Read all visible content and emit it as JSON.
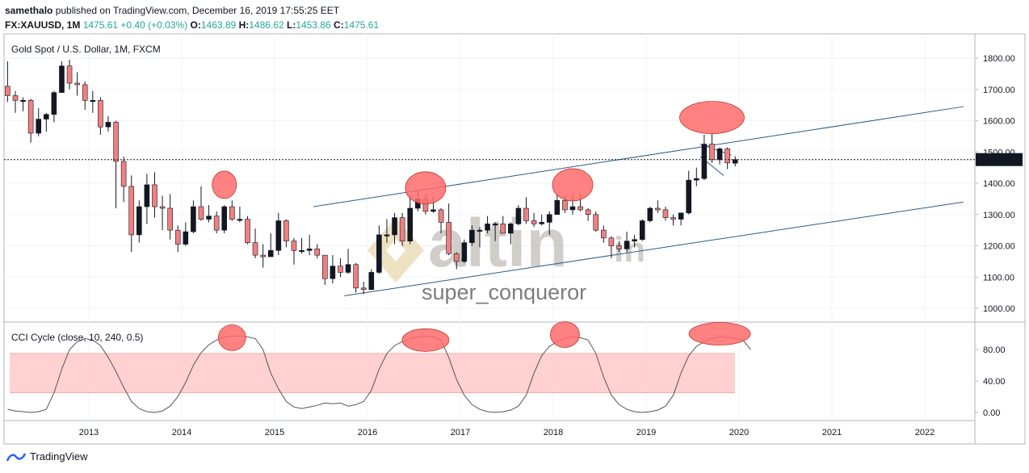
{
  "header": {
    "publisher_name": "samethalo",
    "publisher_rest": "published on TradingView.com, December 16, 2019 17:55:25 EET",
    "symbol": "FX:XAUUSD, 1M",
    "price": "1475.61",
    "change": "+0.40 (+0.03%)",
    "o_label": "O:",
    "o_value": "1463.89",
    "h_label": "H:",
    "h_value": "1486.62",
    "l_label": "L:",
    "l_value": "1453.86",
    "c_label": "C:",
    "c_value": "1475.61"
  },
  "main_pane": {
    "title": "Gold Spot / U.S. Dollar, 1M, FXCM"
  },
  "indicator_pane": {
    "title": "CCI Cycle (close, 10, 240, 0.5)"
  },
  "watermark": {
    "brand": "altin",
    "suffix": "in",
    "author": "super_conqueror"
  },
  "footer": {
    "logo_text": "TradingView"
  },
  "colors": {
    "up": "#26a69a",
    "down": "#ef5350",
    "candle_up_body": "#131722",
    "candle_down_body": "#f08080",
    "trendline": "#2c5b8a",
    "highlight": "#ff6b6b",
    "band": "#ffc9c9"
  },
  "chart_data": [
    {
      "type": "candlestick",
      "timeframe": "1M",
      "x_ticks": [
        "2013",
        "2014",
        "2015",
        "2016",
        "2017",
        "2018",
        "2019",
        "2020",
        "2021",
        "2022"
      ],
      "y_ticks": [
        "1000.00",
        "1100.00",
        "1200.00",
        "1300.00",
        "1400.00",
        "1500.00",
        "1600.00",
        "1700.00",
        "1800.00"
      ],
      "ylim": [
        980,
        1850
      ],
      "last_price": "1475.61",
      "candles": [
        {
          "t": "2012-02",
          "o": 1710,
          "h": 1790,
          "l": 1660,
          "c": 1680
        },
        {
          "t": "2012-03",
          "o": 1680,
          "h": 1695,
          "l": 1625,
          "c": 1665
        },
        {
          "t": "2012-04",
          "o": 1665,
          "h": 1675,
          "l": 1630,
          "c": 1665
        },
        {
          "t": "2012-05",
          "o": 1665,
          "h": 1670,
          "l": 1530,
          "c": 1560
        },
        {
          "t": "2012-06",
          "o": 1560,
          "h": 1640,
          "l": 1550,
          "c": 1605
        },
        {
          "t": "2012-07",
          "o": 1605,
          "h": 1625,
          "l": 1565,
          "c": 1620
        },
        {
          "t": "2012-08",
          "o": 1620,
          "h": 1695,
          "l": 1595,
          "c": 1690
        },
        {
          "t": "2012-09",
          "o": 1690,
          "h": 1790,
          "l": 1690,
          "c": 1775
        },
        {
          "t": "2012-10",
          "o": 1775,
          "h": 1795,
          "l": 1700,
          "c": 1720
        },
        {
          "t": "2012-11",
          "o": 1720,
          "h": 1755,
          "l": 1680,
          "c": 1715
        },
        {
          "t": "2012-12",
          "o": 1715,
          "h": 1725,
          "l": 1635,
          "c": 1665
        },
        {
          "t": "2013-01",
          "o": 1665,
          "h": 1695,
          "l": 1625,
          "c": 1665
        },
        {
          "t": "2013-02",
          "o": 1665,
          "h": 1675,
          "l": 1555,
          "c": 1580
        },
        {
          "t": "2013-03",
          "o": 1580,
          "h": 1615,
          "l": 1565,
          "c": 1595
        },
        {
          "t": "2013-04",
          "o": 1595,
          "h": 1600,
          "l": 1320,
          "c": 1470
        },
        {
          "t": "2013-05",
          "o": 1470,
          "h": 1485,
          "l": 1340,
          "c": 1390
        },
        {
          "t": "2013-06",
          "o": 1390,
          "h": 1425,
          "l": 1180,
          "c": 1235
        },
        {
          "t": "2013-07",
          "o": 1235,
          "h": 1345,
          "l": 1210,
          "c": 1325
        },
        {
          "t": "2013-08",
          "o": 1325,
          "h": 1430,
          "l": 1270,
          "c": 1395
        },
        {
          "t": "2013-09",
          "o": 1395,
          "h": 1435,
          "l": 1290,
          "c": 1325
        },
        {
          "t": "2013-10",
          "o": 1325,
          "h": 1360,
          "l": 1250,
          "c": 1320
        },
        {
          "t": "2013-11",
          "o": 1320,
          "h": 1365,
          "l": 1220,
          "c": 1250
        },
        {
          "t": "2013-12",
          "o": 1250,
          "h": 1265,
          "l": 1180,
          "c": 1205
        },
        {
          "t": "2014-01",
          "o": 1205,
          "h": 1275,
          "l": 1200,
          "c": 1245
        },
        {
          "t": "2014-02",
          "o": 1245,
          "h": 1345,
          "l": 1240,
          "c": 1325
        },
        {
          "t": "2014-03",
          "o": 1325,
          "h": 1390,
          "l": 1280,
          "c": 1285
        },
        {
          "t": "2014-04",
          "o": 1285,
          "h": 1330,
          "l": 1275,
          "c": 1295
        },
        {
          "t": "2014-05",
          "o": 1295,
          "h": 1310,
          "l": 1240,
          "c": 1250
        },
        {
          "t": "2014-06",
          "o": 1250,
          "h": 1330,
          "l": 1240,
          "c": 1325
        },
        {
          "t": "2014-07",
          "o": 1325,
          "h": 1345,
          "l": 1280,
          "c": 1285
        },
        {
          "t": "2014-08",
          "o": 1285,
          "h": 1325,
          "l": 1275,
          "c": 1285
        },
        {
          "t": "2014-09",
          "o": 1285,
          "h": 1295,
          "l": 1205,
          "c": 1210
        },
        {
          "t": "2014-10",
          "o": 1210,
          "h": 1255,
          "l": 1160,
          "c": 1170
        },
        {
          "t": "2014-11",
          "o": 1170,
          "h": 1205,
          "l": 1130,
          "c": 1165
        },
        {
          "t": "2014-12",
          "o": 1165,
          "h": 1240,
          "l": 1165,
          "c": 1185
        },
        {
          "t": "2015-01",
          "o": 1185,
          "h": 1305,
          "l": 1170,
          "c": 1280
        },
        {
          "t": "2015-02",
          "o": 1280,
          "h": 1285,
          "l": 1195,
          "c": 1215
        },
        {
          "t": "2015-03",
          "o": 1215,
          "h": 1225,
          "l": 1140,
          "c": 1185
        },
        {
          "t": "2015-04",
          "o": 1185,
          "h": 1225,
          "l": 1175,
          "c": 1185
        },
        {
          "t": "2015-05",
          "o": 1185,
          "h": 1235,
          "l": 1170,
          "c": 1190
        },
        {
          "t": "2015-06",
          "o": 1190,
          "h": 1205,
          "l": 1160,
          "c": 1170
        },
        {
          "t": "2015-07",
          "o": 1170,
          "h": 1170,
          "l": 1075,
          "c": 1095
        },
        {
          "t": "2015-08",
          "o": 1095,
          "h": 1170,
          "l": 1080,
          "c": 1135
        },
        {
          "t": "2015-09",
          "o": 1135,
          "h": 1160,
          "l": 1100,
          "c": 1115
        },
        {
          "t": "2015-10",
          "o": 1115,
          "h": 1190,
          "l": 1110,
          "c": 1140
        },
        {
          "t": "2015-11",
          "o": 1140,
          "h": 1145,
          "l": 1050,
          "c": 1065
        },
        {
          "t": "2015-12",
          "o": 1065,
          "h": 1085,
          "l": 1045,
          "c": 1060
        },
        {
          "t": "2016-01",
          "o": 1060,
          "h": 1125,
          "l": 1060,
          "c": 1115
        },
        {
          "t": "2016-02",
          "o": 1115,
          "h": 1265,
          "l": 1110,
          "c": 1235
        },
        {
          "t": "2016-03",
          "o": 1235,
          "h": 1285,
          "l": 1210,
          "c": 1235
        },
        {
          "t": "2016-04",
          "o": 1235,
          "h": 1305,
          "l": 1205,
          "c": 1290
        },
        {
          "t": "2016-05",
          "o": 1290,
          "h": 1305,
          "l": 1200,
          "c": 1215
        },
        {
          "t": "2016-06",
          "o": 1215,
          "h": 1360,
          "l": 1205,
          "c": 1320
        },
        {
          "t": "2016-07",
          "o": 1320,
          "h": 1375,
          "l": 1310,
          "c": 1350
        },
        {
          "t": "2016-08",
          "o": 1350,
          "h": 1365,
          "l": 1300,
          "c": 1310
        },
        {
          "t": "2016-09",
          "o": 1310,
          "h": 1355,
          "l": 1305,
          "c": 1315
        },
        {
          "t": "2016-10",
          "o": 1315,
          "h": 1320,
          "l": 1240,
          "c": 1275
        },
        {
          "t": "2016-11",
          "o": 1275,
          "h": 1335,
          "l": 1170,
          "c": 1175
        },
        {
          "t": "2016-12",
          "o": 1175,
          "h": 1180,
          "l": 1125,
          "c": 1150
        },
        {
          "t": "2017-01",
          "o": 1150,
          "h": 1220,
          "l": 1145,
          "c": 1210
        },
        {
          "t": "2017-02",
          "o": 1210,
          "h": 1265,
          "l": 1200,
          "c": 1250
        },
        {
          "t": "2017-03",
          "o": 1250,
          "h": 1260,
          "l": 1195,
          "c": 1250
        },
        {
          "t": "2017-04",
          "o": 1250,
          "h": 1295,
          "l": 1240,
          "c": 1270
        },
        {
          "t": "2017-05",
          "o": 1270,
          "h": 1275,
          "l": 1215,
          "c": 1270
        },
        {
          "t": "2017-06",
          "o": 1270,
          "h": 1295,
          "l": 1240,
          "c": 1240
        },
        {
          "t": "2017-07",
          "o": 1240,
          "h": 1275,
          "l": 1205,
          "c": 1270
        },
        {
          "t": "2017-08",
          "o": 1270,
          "h": 1330,
          "l": 1265,
          "c": 1320
        },
        {
          "t": "2017-09",
          "o": 1320,
          "h": 1355,
          "l": 1270,
          "c": 1280
        },
        {
          "t": "2017-10",
          "o": 1280,
          "h": 1305,
          "l": 1260,
          "c": 1270
        },
        {
          "t": "2017-11",
          "o": 1270,
          "h": 1300,
          "l": 1265,
          "c": 1275
        },
        {
          "t": "2017-12",
          "o": 1275,
          "h": 1310,
          "l": 1235,
          "c": 1300
        },
        {
          "t": "2018-01",
          "o": 1300,
          "h": 1365,
          "l": 1300,
          "c": 1345
        },
        {
          "t": "2018-02",
          "o": 1345,
          "h": 1360,
          "l": 1305,
          "c": 1315
        },
        {
          "t": "2018-03",
          "o": 1315,
          "h": 1365,
          "l": 1300,
          "c": 1325
        },
        {
          "t": "2018-04",
          "o": 1325,
          "h": 1365,
          "l": 1310,
          "c": 1315
        },
        {
          "t": "2018-05",
          "o": 1315,
          "h": 1320,
          "l": 1280,
          "c": 1300
        },
        {
          "t": "2018-06",
          "o": 1300,
          "h": 1310,
          "l": 1245,
          "c": 1250
        },
        {
          "t": "2018-07",
          "o": 1250,
          "h": 1265,
          "l": 1210,
          "c": 1225
        },
        {
          "t": "2018-08",
          "o": 1225,
          "h": 1230,
          "l": 1160,
          "c": 1200
        },
        {
          "t": "2018-09",
          "o": 1200,
          "h": 1215,
          "l": 1180,
          "c": 1190
        },
        {
          "t": "2018-10",
          "o": 1190,
          "h": 1245,
          "l": 1180,
          "c": 1215
        },
        {
          "t": "2018-11",
          "o": 1215,
          "h": 1235,
          "l": 1195,
          "c": 1220
        },
        {
          "t": "2018-12",
          "o": 1220,
          "h": 1285,
          "l": 1215,
          "c": 1280
        },
        {
          "t": "2019-01",
          "o": 1280,
          "h": 1325,
          "l": 1275,
          "c": 1320
        },
        {
          "t": "2019-02",
          "o": 1320,
          "h": 1345,
          "l": 1305,
          "c": 1315
        },
        {
          "t": "2019-03",
          "o": 1315,
          "h": 1325,
          "l": 1280,
          "c": 1290
        },
        {
          "t": "2019-04",
          "o": 1290,
          "h": 1300,
          "l": 1265,
          "c": 1285
        },
        {
          "t": "2019-05",
          "o": 1285,
          "h": 1305,
          "l": 1265,
          "c": 1305
        },
        {
          "t": "2019-06",
          "o": 1305,
          "h": 1440,
          "l": 1300,
          "c": 1410
        },
        {
          "t": "2019-07",
          "o": 1410,
          "h": 1450,
          "l": 1390,
          "c": 1415
        },
        {
          "t": "2019-08",
          "o": 1415,
          "h": 1555,
          "l": 1410,
          "c": 1525
        },
        {
          "t": "2019-09",
          "o": 1525,
          "h": 1560,
          "l": 1465,
          "c": 1475
        },
        {
          "t": "2019-10",
          "o": 1475,
          "h": 1515,
          "l": 1460,
          "c": 1510
        },
        {
          "t": "2019-11",
          "o": 1510,
          "h": 1515,
          "l": 1445,
          "c": 1465
        },
        {
          "t": "2019-12",
          "o": 1463.89,
          "h": 1486.62,
          "l": 1453.86,
          "c": 1475.61
        }
      ],
      "annotations": {
        "upper_channel": [
          [
            "2015-06",
            1325
          ],
          [
            "2022-06",
            1645
          ]
        ],
        "lower_channel": [
          [
            "2015-10",
            1040
          ],
          [
            "2022-06",
            1340
          ]
        ],
        "wedge_upper": [
          [
            "2019-08",
            1525
          ],
          [
            "2019-12",
            1490
          ]
        ],
        "wedge_lower": [
          [
            "2019-08",
            1485
          ],
          [
            "2019-11",
            1425
          ]
        ],
        "ellipses": [
          {
            "t": "2014-06",
            "price": 1395
          },
          {
            "t": "2016-08",
            "price": 1385
          },
          {
            "t": "2018-03",
            "price": 1395
          },
          {
            "t": "2019-09",
            "price": 1610
          }
        ]
      }
    },
    {
      "type": "line",
      "title": "CCI Cycle (close, 10, 240, 0.5)",
      "y_ticks": [
        "0.00",
        "40.00",
        "80.00"
      ],
      "ylim": [
        -10,
        112
      ],
      "band": [
        25,
        75
      ],
      "series": [
        {
          "values": [
            4,
            2,
            1,
            0,
            1,
            4,
            25,
            55,
            80,
            90,
            94,
            92,
            85,
            70,
            52,
            32,
            14,
            5,
            1,
            0,
            2,
            8,
            20,
            38,
            60,
            76,
            86,
            92,
            96,
            97,
            97,
            96,
            94,
            80,
            50,
            30,
            14,
            7,
            5,
            7,
            9,
            12,
            11,
            12,
            8,
            10,
            14,
            28,
            55,
            75,
            85,
            90,
            94,
            96,
            97,
            96,
            92,
            70,
            42,
            22,
            10,
            4,
            1,
            0,
            1,
            3,
            8,
            22,
            50,
            72,
            84,
            90,
            94,
            96,
            95,
            92,
            75,
            45,
            22,
            10,
            4,
            1,
            0,
            1,
            3,
            8,
            22,
            50,
            72,
            84,
            90,
            94,
            96,
            95,
            94,
            92,
            80
          ]
        }
      ],
      "highlights": [
        {
          "t": "2014-07",
          "value": 95
        },
        {
          "t": "2016-08",
          "value": 92
        },
        {
          "t": "2018-02",
          "value": 99
        },
        {
          "t": "2019-10",
          "value": 100
        }
      ]
    }
  ]
}
